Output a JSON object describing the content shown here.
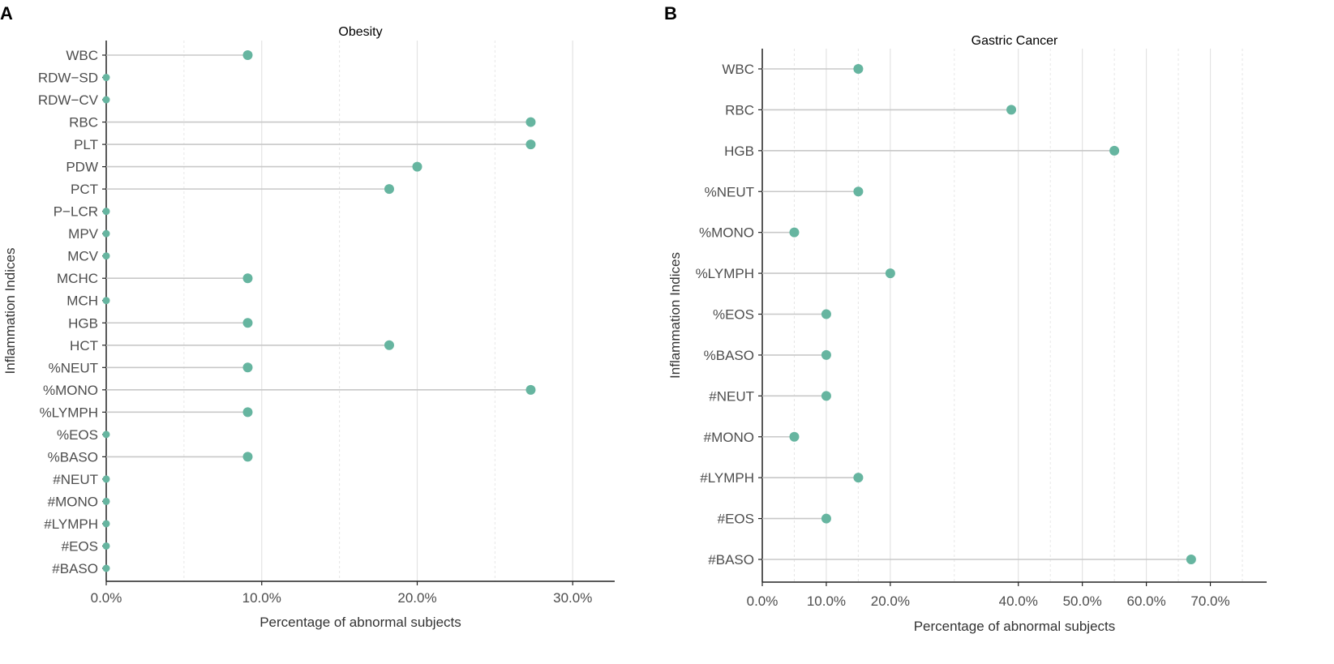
{
  "chart_data": [
    {
      "panel": "A",
      "type": "lollipop",
      "title": "Obesity",
      "xlabel": "Percentage of abnormal subjects",
      "ylabel": "Inflammation Indices",
      "xlim": [
        0,
        32.7
      ],
      "major_ticks": [
        0,
        10,
        20,
        30
      ],
      "minor_ticks": [
        5,
        15,
        25
      ],
      "tick_labels": [
        "0.0%",
        "10.0%",
        "20.0%",
        "30.0%"
      ],
      "categories": [
        "WBC",
        "RDW−SD",
        "RDW−CV",
        "RBC",
        "PLT",
        "PDW",
        "PCT",
        "P−LCR",
        "MPV",
        "MCV",
        "MCHC",
        "MCH",
        "HGB",
        "HCT",
        "%NEUT",
        "%MONO",
        "%LYMPH",
        "%EOS",
        "%BASO",
        "#NEUT",
        "#MONO",
        "#LYMPH",
        "#EOS",
        "#BASO"
      ],
      "values": [
        9.1,
        0,
        0,
        27.3,
        27.3,
        20.0,
        18.2,
        0,
        0,
        0,
        9.1,
        0,
        9.1,
        18.2,
        9.1,
        27.3,
        9.1,
        0,
        9.1,
        0,
        0,
        0,
        0,
        0
      ],
      "color": "#66b5a0"
    },
    {
      "panel": "B",
      "type": "lollipop",
      "title": "Gastric Cancer",
      "xlabel": "Percentage of abnormal subjects",
      "ylabel": "Inflammation  Indices",
      "xlim": [
        0,
        78.8
      ],
      "major_ticks": [
        0,
        10,
        20,
        40,
        50,
        60,
        70
      ],
      "minor_ticks": [
        5,
        15,
        30,
        45,
        55,
        65,
        75
      ],
      "tick_labels": [
        "0.0%",
        "10.0%",
        "20.0%",
        "40.0%",
        "50.0%",
        "60.0%",
        "70.0%"
      ],
      "categories": [
        "WBC",
        "RBC",
        "HGB",
        "%NEUT",
        "%MONO",
        "%LYMPH",
        "%EOS",
        "%BASO",
        "#NEUT",
        "#MONO",
        "#LYMPH",
        "#EOS",
        "#BASO"
      ],
      "values": [
        15.0,
        38.9,
        55.0,
        15.0,
        5.0,
        20.0,
        10.0,
        10.0,
        10.0,
        5.0,
        15.0,
        10.0,
        67.0
      ],
      "color": "#66b5a0"
    }
  ]
}
